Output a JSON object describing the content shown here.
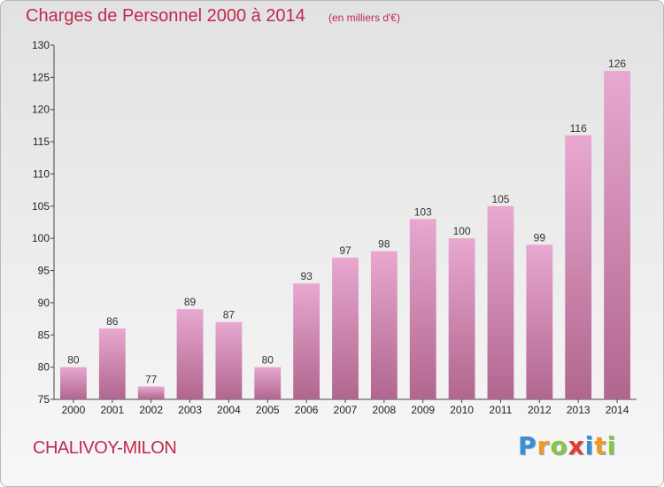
{
  "header": {
    "title": "Charges de Personnel 2000 à 2014",
    "subtitle": "(en milliers d'€)"
  },
  "footer": {
    "commune": "CHALIVOY-MILON",
    "logo_text": "Proxiti"
  },
  "colors": {
    "title": "#c02a4e",
    "bar_top": "#e8a8cf",
    "bar_bottom": "#b0668f"
  },
  "chart_data": {
    "type": "bar",
    "title": "Charges de Personnel 2000 à 2014",
    "subtitle": "(en milliers d'€)",
    "categories": [
      "2000",
      "2001",
      "2002",
      "2003",
      "2004",
      "2005",
      "2006",
      "2007",
      "2008",
      "2009",
      "2010",
      "2011",
      "2012",
      "2013",
      "2014"
    ],
    "values": [
      80,
      86,
      77,
      89,
      87,
      80,
      93,
      97,
      98,
      103,
      100,
      105,
      99,
      116,
      126
    ],
    "ylim": [
      75,
      130
    ],
    "yticks": [
      75,
      80,
      85,
      90,
      95,
      100,
      105,
      110,
      115,
      120,
      125,
      130
    ],
    "grid": false,
    "legend": "none"
  }
}
